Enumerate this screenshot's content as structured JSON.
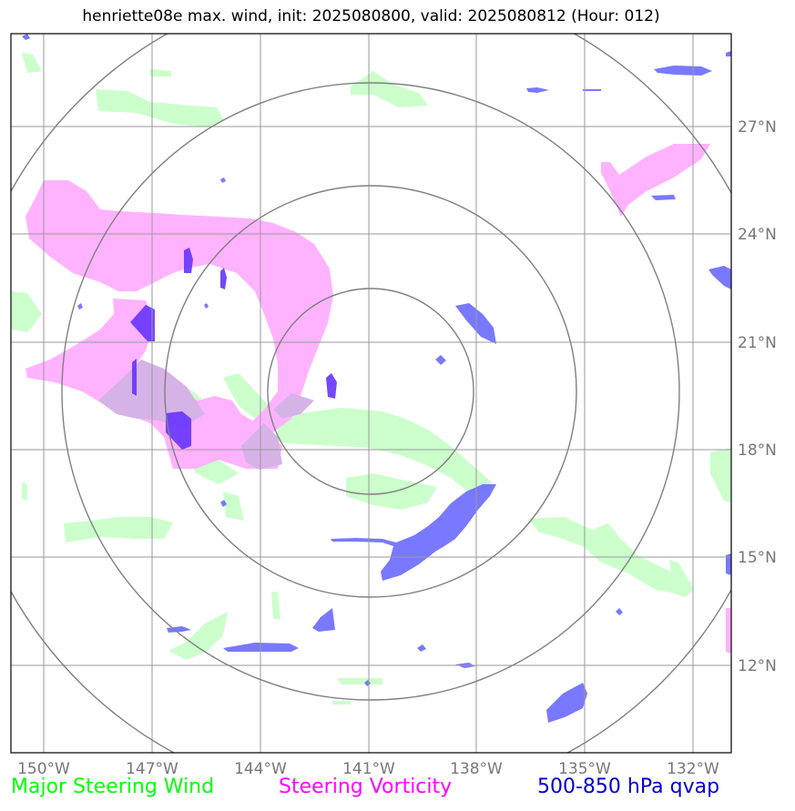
{
  "title": "henriette08e max. wind, init: 2025080800, valid: 2025080812 (Hour: 012)",
  "x_ticks": [
    "150°W",
    "147°W",
    "144°W",
    "141°W",
    "138°W",
    "135°W",
    "132°W"
  ],
  "y_ticks": [
    "27°N",
    "24°N",
    "21°N",
    "18°N",
    "15°N",
    "12°N"
  ],
  "legend": [
    {
      "label": "Major Steering Wind",
      "color": "#00ff00"
    },
    {
      "label": "Steering Vorticity",
      "color": "#ff00ff"
    },
    {
      "label": "500-850 hPa qvap",
      "color": "#0000cc"
    }
  ],
  "colors": {
    "wind": "#ccffcc",
    "vorticity": "#ffb3ff",
    "qvap": "#6666ff",
    "qvap_dark": "#6633ff",
    "grid": "#999999",
    "rings": "#808080"
  }
}
